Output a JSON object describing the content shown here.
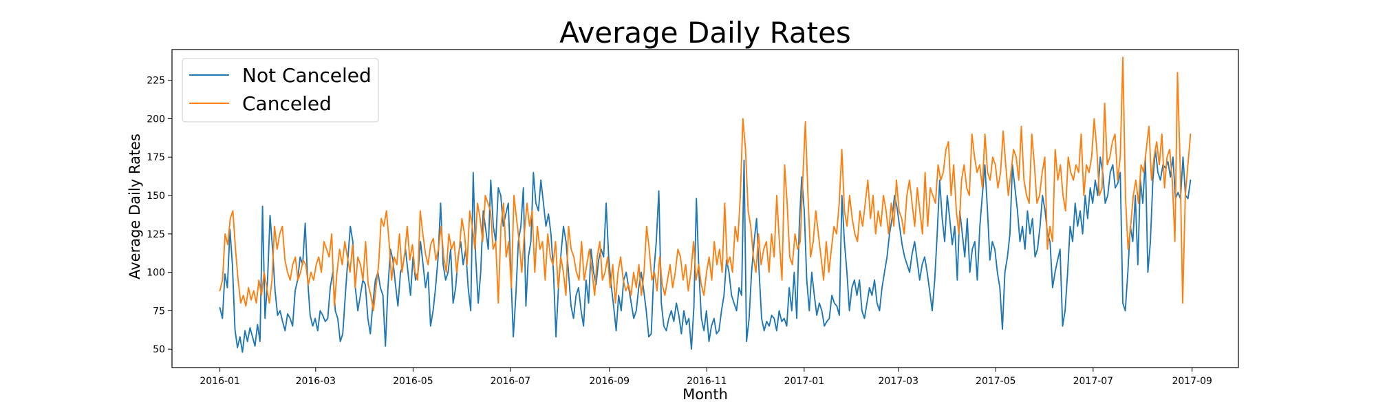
{
  "chart_data": {
    "type": "line",
    "title": "Average Daily Rates",
    "xlabel": "Month",
    "ylabel": "Average Daily Rates",
    "x_start": "2016-01-01",
    "x_end": "2017-08-31",
    "sampling": "approximately every 3 days",
    "xlim": [
      "2015-12-02",
      "2017-09-30"
    ],
    "ylim": [
      38,
      245
    ],
    "grid": false,
    "legend_position": "upper-left",
    "x_ticks": [
      "2016-01",
      "2016-03",
      "2016-05",
      "2016-07",
      "2016-09",
      "2016-11",
      "2017-01",
      "2017-03",
      "2017-05",
      "2017-07",
      "2017-09"
    ],
    "y_ticks": [
      50,
      75,
      100,
      125,
      150,
      175,
      200,
      225
    ],
    "series": [
      {
        "name": "Not Canceled",
        "color": "#1f77b4",
        "values": [
          77,
          70,
          99,
          90,
          128,
          105,
          63,
          51,
          58,
          48,
          62,
          55,
          64,
          58,
          52,
          66,
          55,
          143,
          70,
          95,
          137,
          115,
          88,
          72,
          75,
          68,
          62,
          73,
          70,
          65,
          88,
          95,
          110,
          105,
          132,
          95,
          72,
          65,
          70,
          62,
          75,
          72,
          68,
          70,
          90,
          100,
          75,
          70,
          55,
          60,
          85,
          108,
          130,
          120,
          90,
          75,
          85,
          95,
          92,
          70,
          60,
          80,
          95,
          100,
          90,
          85,
          52,
          90,
          115,
          108,
          92,
          78,
          100,
          105,
          115,
          100,
          85,
          110,
          95,
          100,
          120,
          105,
          90,
          100,
          65,
          75,
          90,
          110,
          145,
          105,
          95,
          100,
          115,
          80,
          90,
          110,
          120,
          105,
          115,
          90,
          75,
          165,
          110,
          80,
          100,
          140,
          128,
          115,
          160,
          130,
          120,
          155,
          150,
          130,
          138,
          145,
          100,
          58,
          85,
          120,
          130,
          155,
          78,
          110,
          120,
          165,
          145,
          140,
          160,
          145,
          130,
          138,
          125,
          100,
          58,
          90,
          112,
          130,
          120,
          100,
          78,
          70,
          85,
          90,
          75,
          65,
          95,
          80,
          115,
          100,
          92,
          108,
          115,
          110,
          145,
          110,
          92,
          78,
          62,
          85,
          75,
          95,
          100,
          90,
          80,
          70,
          75,
          90,
          100,
          88,
          75,
          58,
          60,
          100,
          120,
          153,
          80,
          65,
          62,
          70,
          75,
          68,
          80,
          72,
          60,
          75,
          66,
          70,
          50,
          78,
          148,
          100,
          70,
          62,
          75,
          55,
          65,
          70,
          60,
          62,
          75,
          85,
          108,
          100,
          85,
          80,
          75,
          90,
          85,
          173,
          55,
          70,
          100,
          120,
          135,
          100,
          70,
          62,
          68,
          65,
          72,
          70,
          62,
          75,
          68,
          70,
          65,
          90,
          75,
          100,
          70,
          130,
          162,
          140,
          95,
          75,
          100,
          85,
          72,
          80,
          75,
          65,
          68,
          70,
          85,
          80,
          78,
          72,
          150,
          120,
          100,
          75,
          90,
          95,
          85,
          95,
          75,
          70,
          80,
          90,
          85,
          95,
          80,
          75,
          90,
          100,
          110,
          125,
          135,
          150,
          142,
          130,
          118,
          110,
          105,
          100,
          112,
          120,
          108,
          95,
          105,
          110,
          100,
          88,
          75,
          95,
          125,
          160,
          135,
          120,
          150,
          135,
          118,
          130,
          95,
          140,
          125,
          110,
          135,
          100,
          115,
          120,
          95,
          130,
          150,
          170,
          142,
          108,
          120,
          115,
          100,
          90,
          63,
          100,
          110,
          125,
          170,
          155,
          140,
          120,
          130,
          115,
          140,
          125,
          135,
          110,
          115,
          130,
          150,
          140,
          125,
          120,
          90,
          100,
          108,
          115,
          65,
          75,
          100,
          130,
          120,
          145,
          130,
          140,
          125,
          150,
          135,
          155,
          145,
          160,
          150,
          175,
          165,
          145,
          150,
          165,
          170,
          155,
          158,
          165,
          80,
          75,
          100,
          130,
          120,
          150,
          105,
          160,
          145,
          175,
          100,
          120,
          160,
          180,
          165,
          160,
          170,
          168,
          172,
          162,
          175,
          148,
          152,
          148,
          175,
          150,
          148,
          160
        ]
      },
      {
        "name": "Canceled",
        "color": "#ff7f0e",
        "values": [
          88,
          95,
          125,
          118,
          135,
          140,
          115,
          95,
          80,
          85,
          78,
          90,
          82,
          88,
          80,
          95,
          85,
          100,
          90,
          80,
          95,
          130,
          115,
          125,
          130,
          108,
          100,
          95,
          105,
          110,
          95,
          100,
          108,
          105,
          92,
          100,
          95,
          105,
          110,
          100,
          120,
          115,
          110,
          125,
          78,
          100,
          115,
          105,
          120,
          110,
          100,
          118,
          90,
          110,
          105,
          95,
          120,
          92,
          85,
          75,
          90,
          105,
          135,
          130,
          140,
          120,
          95,
          110,
          105,
          125,
          100,
          112,
          130,
          108,
          118,
          100,
          95,
          140,
          125,
          112,
          105,
          118,
          122,
          108,
          115,
          130,
          110,
          100,
          125,
          115,
          120,
          100,
          115,
          135,
          125,
          105,
          140,
          130,
          115,
          145,
          135,
          120,
          150,
          145,
          140,
          115,
          120,
          80,
          130,
          145,
          110,
          120,
          90,
          150,
          135,
          120,
          100,
          125,
          145,
          130,
          140,
          100,
          130,
          115,
          120,
          95,
          125,
          110,
          105,
          120,
          90,
          110,
          100,
          85,
          130,
          115,
          110,
          100,
          95,
          120,
          95,
          105,
          115,
          100,
          85,
          110,
          120,
          95,
          100,
          110,
          90,
          105,
          80,
          100,
          110,
          95,
          88,
          92,
          85,
          100,
          90,
          105,
          85,
          100,
          130,
          115,
          95,
          100,
          88,
          110,
          92,
          85,
          95,
          105,
          90,
          100,
          115,
          110,
          95,
          105,
          88,
          100,
          120,
          95,
          105,
          92,
          85,
          100,
          110,
          95,
          120,
          105,
          115,
          100,
          145,
          105,
          110,
          100,
          130,
          120,
          150,
          200,
          180,
          140,
          130,
          110,
          100,
          125,
          105,
          115,
          120,
          100,
          125,
          110,
          150,
          120,
          95,
          170,
          145,
          110,
          105,
          125,
          115,
          120,
          160,
          198,
          150,
          110,
          120,
          140,
          125,
          110,
          95,
          120,
          100,
          115,
          130,
          125,
          145,
          180,
          140,
          130,
          150,
          135,
          125,
          120,
          140,
          130,
          145,
          160,
          135,
          150,
          125,
          140,
          130,
          150,
          140,
          125,
          145,
          130,
          160,
          140,
          135,
          125,
          150,
          160,
          145,
          130,
          155,
          140,
          125,
          165,
          130,
          155,
          150,
          145,
          170,
          160,
          165,
          180,
          185,
          150,
          170,
          140,
          125,
          160,
          170,
          155,
          150,
          190,
          175,
          165,
          170,
          155,
          190,
          165,
          160,
          175,
          170,
          155,
          165,
          192,
          170,
          150,
          165,
          180,
          175,
          160,
          195,
          160,
          150,
          145,
          190,
          170,
          145,
          150,
          165,
          175,
          115,
          130,
          120,
          180,
          160,
          170,
          150,
          140,
          175,
          165,
          160,
          170,
          165,
          190,
          150,
          170,
          165,
          175,
          200,
          180,
          150,
          155,
          210,
          170,
          175,
          185,
          190,
          160,
          175,
          240,
          150,
          115,
          130,
          150,
          160,
          145,
          170,
          165,
          180,
          195,
          160,
          175,
          185,
          170,
          190,
          155,
          175,
          180,
          160,
          120,
          230,
          170,
          80,
          150,
          170,
          190
        ]
      }
    ]
  }
}
